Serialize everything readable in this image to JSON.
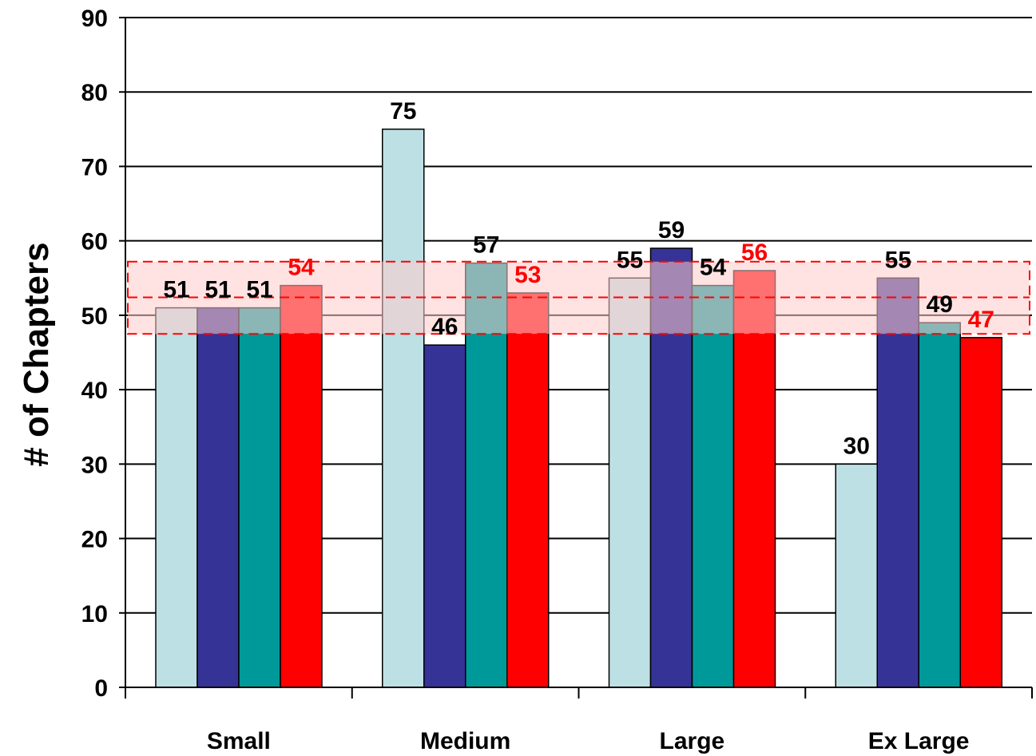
{
  "chart_data": {
    "type": "bar",
    "title": "",
    "xlabel": "",
    "ylabel": "# of Chapters",
    "ylim": [
      0,
      90
    ],
    "yticks": [
      0,
      10,
      20,
      30,
      40,
      50,
      60,
      70,
      80,
      90
    ],
    "grid": true,
    "legend": "none",
    "categories": [
      "Small",
      "Medium",
      "Large",
      "Ex Large"
    ],
    "series": [
      {
        "color": "#bde0e5",
        "label_color": "#000000",
        "values": [
          51,
          75,
          55,
          30
        ]
      },
      {
        "color": "#363396",
        "label_color": "#000000",
        "values": [
          51,
          46,
          59,
          55
        ]
      },
      {
        "color": "#009999",
        "label_color": "#000000",
        "values": [
          51,
          57,
          54,
          49
        ]
      },
      {
        "color": "#ff0000",
        "label_color": "#ff0000",
        "values": [
          54,
          53,
          56,
          47
        ]
      }
    ],
    "band": {
      "low": 47.5,
      "high": 57.2,
      "mid": 52.4,
      "color": "#ff0000",
      "fill": "#ffcccc"
    }
  }
}
